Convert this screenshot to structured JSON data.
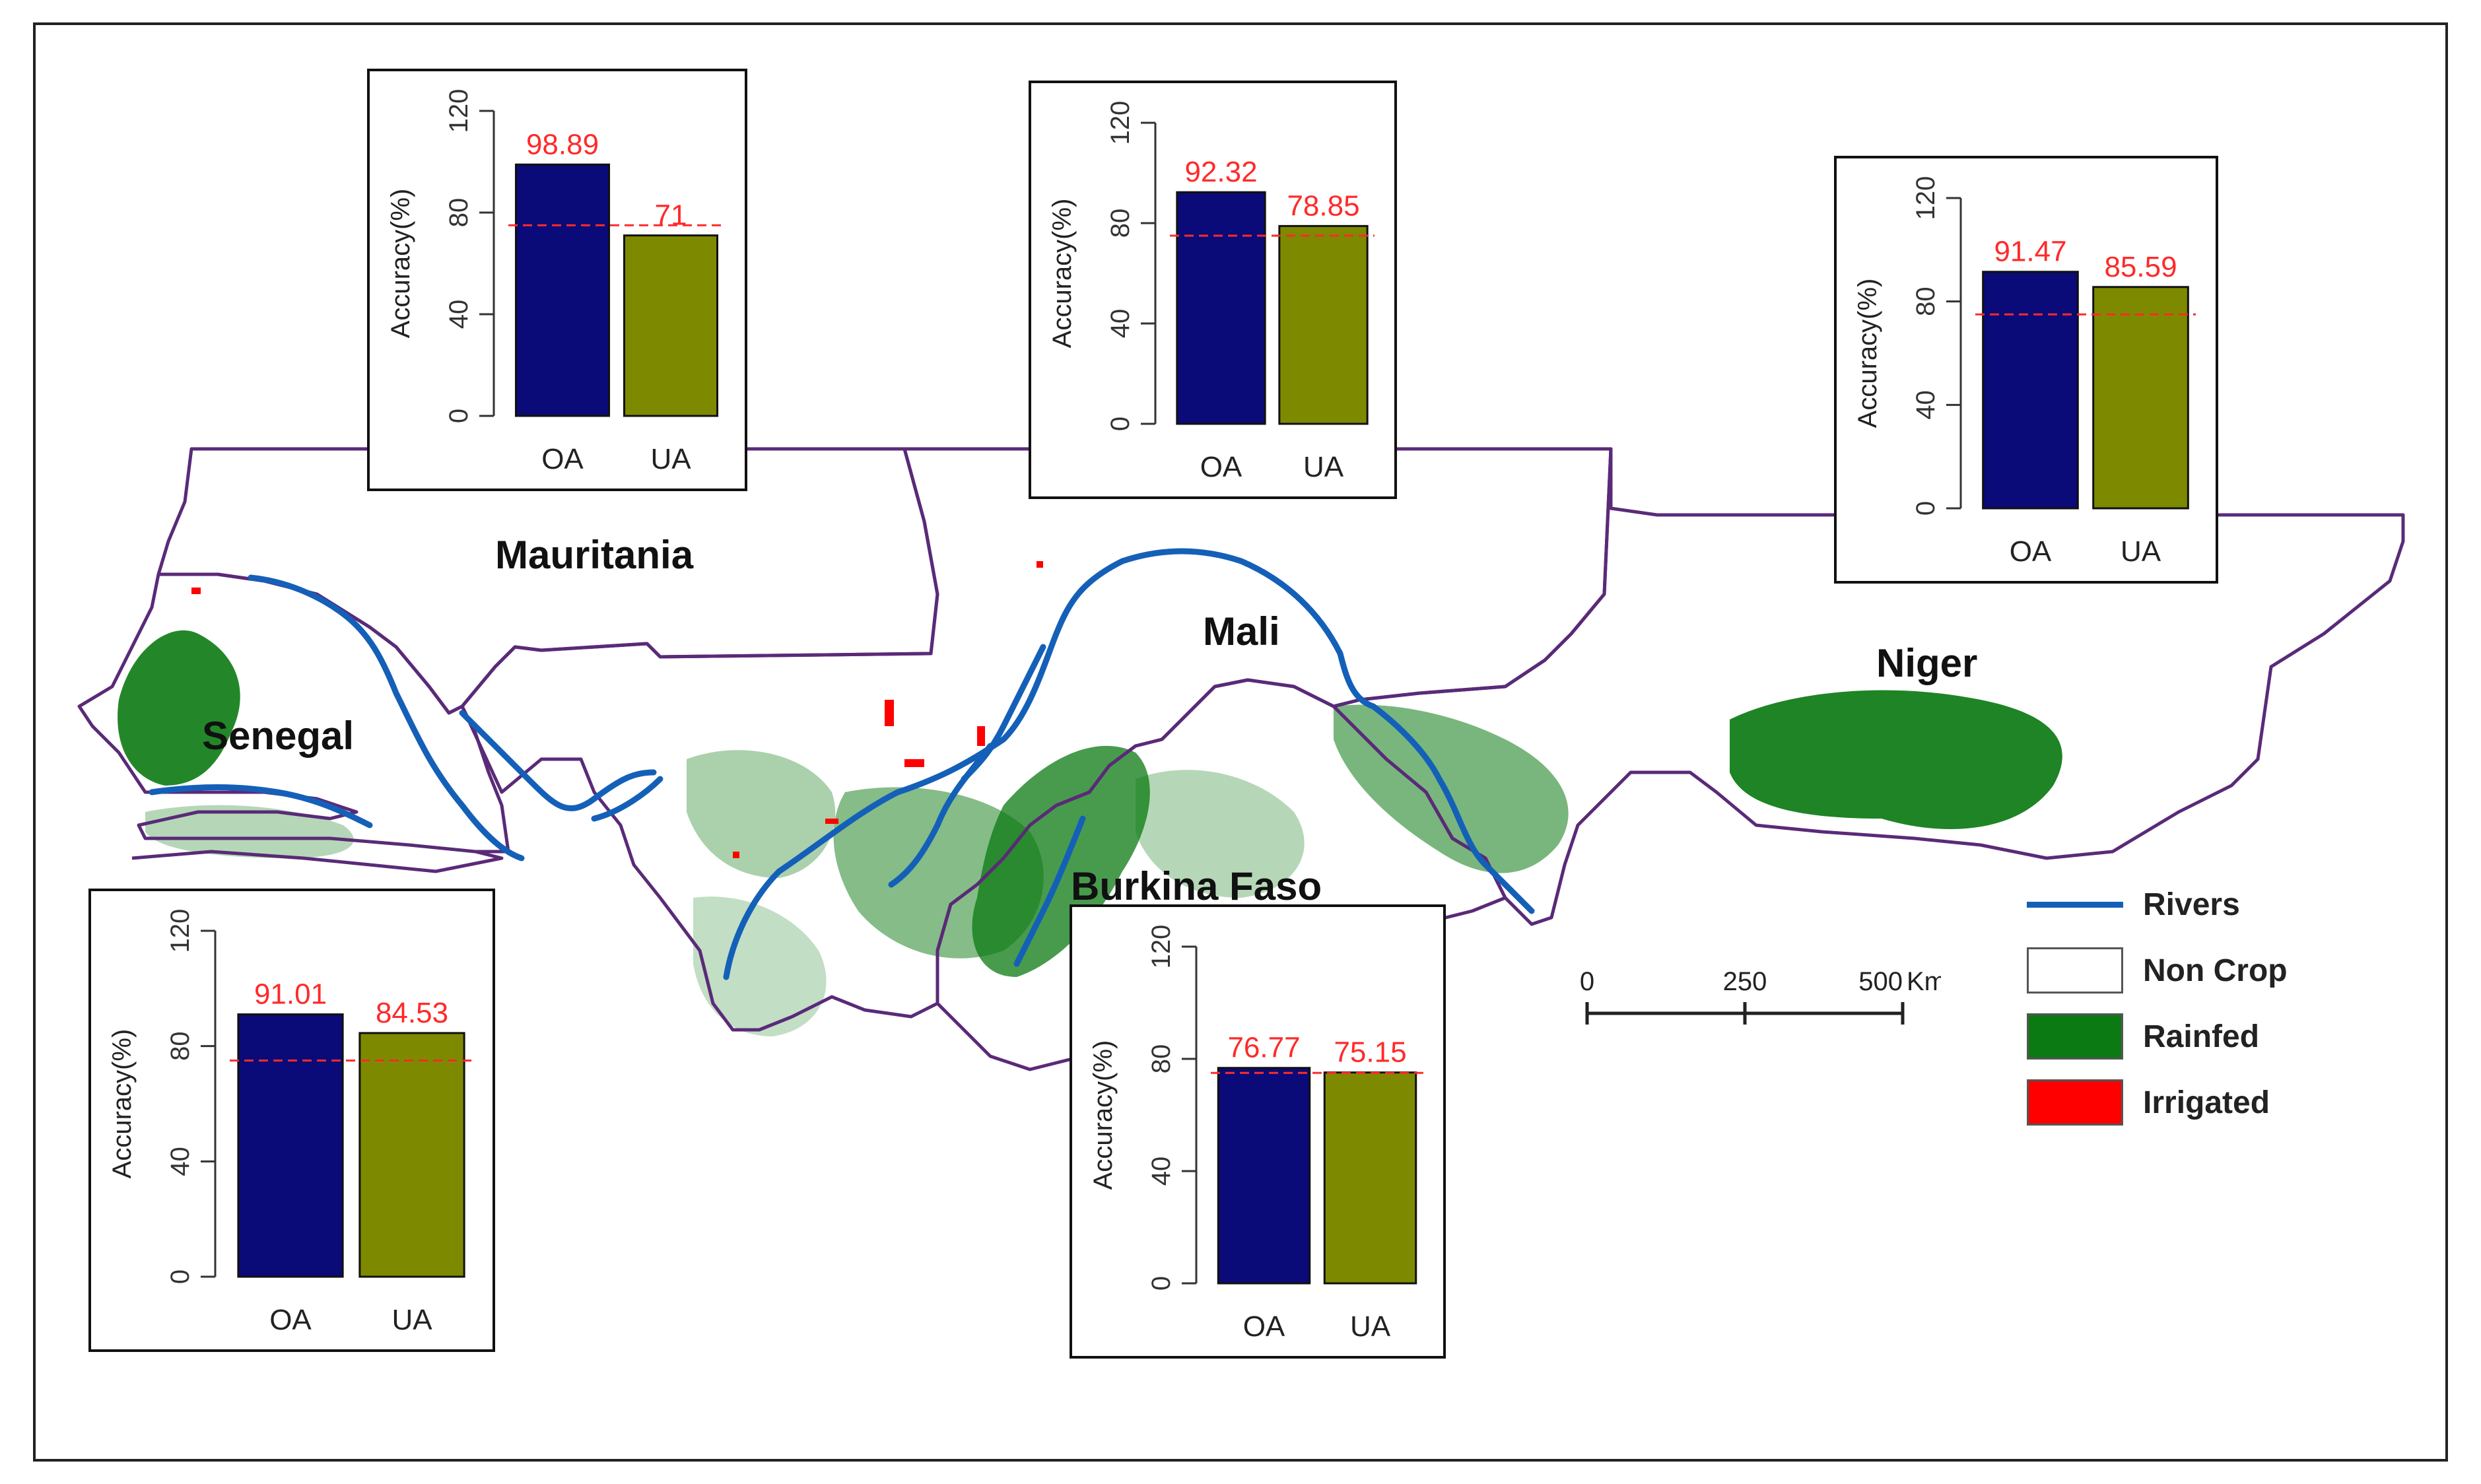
{
  "map": {
    "countries": [
      {
        "id": "mauritania",
        "name": "Mauritania"
      },
      {
        "id": "senegal",
        "name": "Senegal"
      },
      {
        "id": "mali",
        "name": "Mali"
      },
      {
        "id": "niger",
        "name": "Niger"
      },
      {
        "id": "burkina-faso",
        "name": "Burkina Faso"
      }
    ],
    "legend": [
      {
        "label": "Rivers",
        "kind": "line",
        "color": "#1460b8"
      },
      {
        "label": "Non Crop",
        "kind": "swatch",
        "color": "#ffffff"
      },
      {
        "label": "Rainfed",
        "kind": "swatch",
        "color": "#0b7a12"
      },
      {
        "label": "Irrigated",
        "kind": "swatch",
        "color": "#ff0000"
      }
    ],
    "scale_bar": {
      "ticks": [
        "0",
        "250",
        "500"
      ],
      "unit": "Km"
    },
    "colors": {
      "border": "#5a2a78",
      "river": "#1460b8",
      "rainfed": "#0b7a12",
      "irrigated": "#ff0000"
    }
  },
  "chart_data": [
    {
      "type": "bar",
      "country": "Mauritania",
      "categories": [
        "OA",
        "UA"
      ],
      "values": [
        98.89,
        71
      ],
      "value_labels": [
        "98.89",
        "71"
      ],
      "ylabel": "Accuracy(%)",
      "ylim": [
        0,
        120
      ],
      "yticks": [
        "0",
        "40",
        "80",
        "120"
      ],
      "reference_line": 75,
      "colors": [
        "#0a0a78",
        "#7d8a00"
      ]
    },
    {
      "type": "bar",
      "country": "Mali",
      "categories": [
        "OA",
        "UA"
      ],
      "values": [
        92.32,
        78.85
      ],
      "value_labels": [
        "92.32",
        "78.85"
      ],
      "ylabel": "Accuracy(%)",
      "ylim": [
        0,
        120
      ],
      "yticks": [
        "0",
        "40",
        "80",
        "120"
      ],
      "reference_line": 75,
      "colors": [
        "#0a0a78",
        "#7d8a00"
      ]
    },
    {
      "type": "bar",
      "country": "Niger",
      "categories": [
        "OA",
        "UA"
      ],
      "values": [
        91.47,
        85.59
      ],
      "value_labels": [
        "91.47",
        "85.59"
      ],
      "ylabel": "Accuracy(%)",
      "ylim": [
        0,
        120
      ],
      "yticks": [
        "0",
        "40",
        "80",
        "120"
      ],
      "reference_line": 75,
      "colors": [
        "#0a0a78",
        "#7d8a00"
      ]
    },
    {
      "type": "bar",
      "country": "Senegal",
      "categories": [
        "OA",
        "UA"
      ],
      "values": [
        91.01,
        84.53
      ],
      "value_labels": [
        "91.01",
        "84.53"
      ],
      "ylabel": "Accuracy(%)",
      "ylim": [
        0,
        120
      ],
      "yticks": [
        "0",
        "40",
        "80",
        "120"
      ],
      "reference_line": 75,
      "colors": [
        "#0a0a78",
        "#7d8a00"
      ]
    },
    {
      "type": "bar",
      "country": "Burkina Faso",
      "categories": [
        "OA",
        "UA"
      ],
      "values": [
        76.77,
        75.15
      ],
      "value_labels": [
        "76.77",
        "75.15"
      ],
      "ylabel": "Accuracy(%)",
      "ylim": [
        0,
        120
      ],
      "yticks": [
        "0",
        "40",
        "80",
        "120"
      ],
      "reference_line": 75,
      "colors": [
        "#0a0a78",
        "#7d8a00"
      ]
    }
  ]
}
